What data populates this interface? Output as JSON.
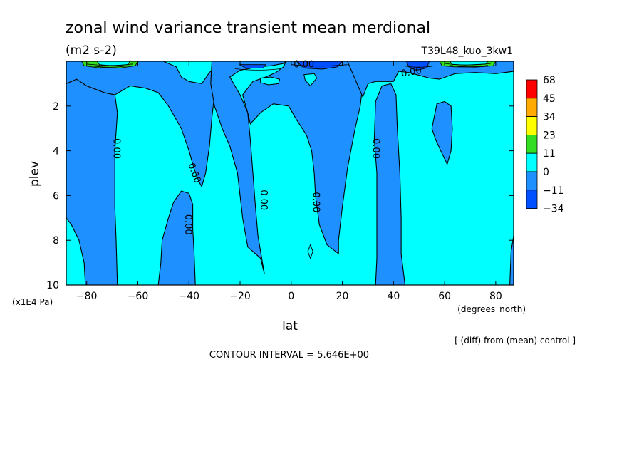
{
  "colors": {
    "cyan": "#00ffff",
    "blue_mid": "#1e90ff",
    "blue_dark": "#0050ff",
    "green": "#33dd22",
    "yellow": "#ffff00",
    "orange": "#ffaa00",
    "red": "#ff0000"
  },
  "chart_data": {
    "type": "contour",
    "title": "zonal wind variance transient mean merdional",
    "subtitle": "(m2 s-2)",
    "run_label": "T39L48_kuo_3kw1",
    "xlabel": "lat",
    "xunits": "(degrees_north)",
    "ylabel": "plev",
    "yunits": "(x1E4 Pa)",
    "xlim": [
      -88,
      87
    ],
    "ylim": [
      10,
      0
    ],
    "xticks": [
      "-80",
      "-60",
      "-40",
      "-20",
      "0",
      "20",
      "40",
      "60",
      "80"
    ],
    "yticks": [
      "2",
      "4",
      "6",
      "8",
      "10"
    ],
    "contour_labels": [
      "0.00",
      "0.00",
      "0.00",
      "0.00",
      "0.00",
      "0.00",
      "0.00",
      "0.00",
      "0.00"
    ],
    "contour_interval": "CONTOUR INTERVAL = 5.646E+00",
    "note": "[ (diff) from (mean) control ]",
    "colorbar": {
      "labels": [
        "68",
        "45",
        "34",
        "23",
        "11",
        "0",
        "-11",
        "-34"
      ],
      "colors": [
        "#ff0000",
        "#ffaa00",
        "#ffff00",
        "#33dd22",
        "#00ffff",
        "#1e90ff",
        "#0050ff"
      ]
    },
    "regions": {
      "background": 0,
      "negative_lobes": [
        {
          "lat": [
            -88,
            -68
          ],
          "plev": [
            1,
            10
          ]
        },
        {
          "lat": [
            -52,
            -37
          ],
          "plev": [
            5.8,
            10
          ]
        },
        {
          "lat": [
            -70,
            -33
          ],
          "plev": [
            0,
            6
          ]
        },
        {
          "lat": [
            -18,
            -10
          ],
          "plev": [
            1.5,
            9.5
          ]
        },
        {
          "lat": [
            5,
            30
          ],
          "plev": [
            1.5,
            8.6
          ]
        },
        {
          "lat": [
            33,
            43
          ],
          "plev": [
            1,
            10
          ]
        },
        {
          "lat": [
            55,
            63
          ],
          "plev": [
            1.9,
            4.6
          ]
        }
      ]
    }
  }
}
